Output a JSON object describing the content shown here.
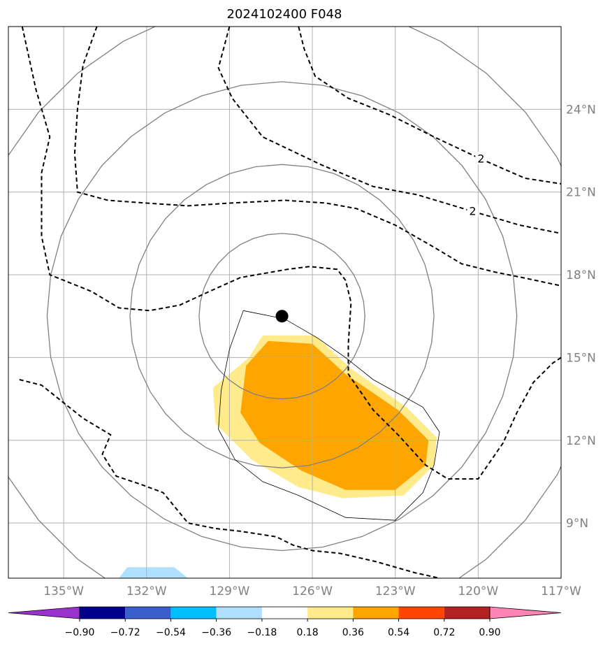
{
  "title": "2024102400 F048",
  "chart_data": {
    "type": "map-contour",
    "title": "2024102400 F048",
    "projection": "lat-lon",
    "lon_range": [
      -137,
      -117
    ],
    "lat_range": [
      7,
      27
    ],
    "lon_ticks": [
      {
        "value": -135,
        "label": "135°W"
      },
      {
        "value": -132,
        "label": "132°W"
      },
      {
        "value": -129,
        "label": "129°W"
      },
      {
        "value": -126,
        "label": "126°W"
      },
      {
        "value": -123,
        "label": "123°W"
      },
      {
        "value": -120,
        "label": "120°W"
      },
      {
        "value": -117,
        "label": "117°W"
      }
    ],
    "lat_ticks": [
      {
        "value": 9,
        "label": "9°N"
      },
      {
        "value": 12,
        "label": "12°N"
      },
      {
        "value": 15,
        "label": "15°N"
      },
      {
        "value": 18,
        "label": "18°N"
      },
      {
        "value": 21,
        "label": "21°N"
      },
      {
        "value": 24,
        "label": "24°N"
      }
    ],
    "grid": true,
    "center_marker": {
      "lon": -127.1,
      "lat": 16.5
    },
    "range_circles_deg": [
      3,
      5.5,
      8.5,
      11.5
    ],
    "colorbar": {
      "extend": "both",
      "levels": [
        -0.9,
        -0.72,
        -0.54,
        -0.36,
        -0.18,
        0.18,
        0.36,
        0.54,
        0.72,
        0.9
      ],
      "labels": [
        "−0.90",
        "−0.72",
        "−0.54",
        "−0.36",
        "−0.18",
        "0.18",
        "0.36",
        "0.54",
        "0.72",
        "0.90"
      ],
      "colors": [
        "#9932cc",
        "#00008b",
        "#3a5fcd",
        "#00bfff",
        "#b0e0ff",
        "#ffffff",
        "#ffeb8c",
        "#ffa500",
        "#ff4500",
        "#b22222",
        "#ff86b4"
      ]
    },
    "fill_regions": [
      {
        "level": "0.18–0.36",
        "color": "#ffeb8c",
        "points": [
          [
            -127.8,
            15.8
          ],
          [
            -125.9,
            15.8
          ],
          [
            -124.6,
            14.6
          ],
          [
            -122.6,
            13.2
          ],
          [
            -121.5,
            12.1
          ],
          [
            -121.6,
            11.1
          ],
          [
            -122.7,
            10.0
          ],
          [
            -124.9,
            9.9
          ],
          [
            -126.5,
            10.3
          ],
          [
            -128.2,
            11.3
          ],
          [
            -129.5,
            12.6
          ],
          [
            -129.6,
            13.9
          ],
          [
            -128.3,
            15.0
          ]
        ]
      },
      {
        "level": "0.36–0.54",
        "color": "#ffa500",
        "points": [
          [
            -127.6,
            15.6
          ],
          [
            -126.0,
            15.5
          ],
          [
            -124.8,
            14.4
          ],
          [
            -122.9,
            13.1
          ],
          [
            -121.8,
            12.0
          ],
          [
            -121.9,
            11.1
          ],
          [
            -123.0,
            10.2
          ],
          [
            -124.8,
            10.2
          ],
          [
            -126.4,
            10.9
          ],
          [
            -127.9,
            11.9
          ],
          [
            -128.6,
            13.0
          ],
          [
            -128.4,
            14.7
          ]
        ]
      },
      {
        "level": "-0.36–-0.18",
        "color": "#b0e0ff",
        "points": [
          [
            -133.0,
            7.0
          ],
          [
            -132.7,
            7.4
          ],
          [
            -131.0,
            7.4
          ],
          [
            -130.5,
            7.0
          ]
        ]
      }
    ],
    "dashed_contours": [
      {
        "label": "",
        "points": [
          [
            -136.6,
            14.2
          ],
          [
            -135.8,
            14.0
          ],
          [
            -134.3,
            12.8
          ],
          [
            -133.3,
            12.2
          ],
          [
            -133.6,
            11.5
          ],
          [
            -133.1,
            10.7
          ],
          [
            -132.2,
            10.4
          ],
          [
            -131.4,
            10.1
          ],
          [
            -130.5,
            9.0
          ],
          [
            -129.5,
            8.8
          ],
          [
            -128.6,
            8.7
          ],
          [
            -127.3,
            8.5
          ],
          [
            -126.7,
            8.2
          ],
          [
            -126.0,
            8.0
          ],
          [
            -125.0,
            7.9
          ],
          [
            -123.7,
            7.6
          ],
          [
            -122.3,
            7.2
          ],
          [
            -121.4,
            7.0
          ]
        ]
      },
      {
        "label": "",
        "points": [
          [
            -136.5,
            27.0
          ],
          [
            -136.0,
            24.7
          ],
          [
            -135.5,
            23.0
          ],
          [
            -135.8,
            21.7
          ],
          [
            -135.8,
            19.4
          ],
          [
            -135.5,
            18.0
          ],
          [
            -134.0,
            17.4
          ],
          [
            -133.0,
            16.8
          ],
          [
            -131.9,
            16.7
          ],
          [
            -130.8,
            16.9
          ],
          [
            -129.5,
            17.5
          ],
          [
            -128.6,
            17.9
          ],
          [
            -126.9,
            18.2
          ],
          [
            -126.1,
            18.3
          ],
          [
            -125.1,
            18.2
          ],
          [
            -124.8,
            17.8
          ],
          [
            -124.6,
            17.0
          ],
          [
            -124.7,
            15.5
          ],
          [
            -124.7,
            14.4
          ],
          [
            -123.8,
            13.1
          ],
          [
            -122.9,
            12.2
          ],
          [
            -121.9,
            11.1
          ],
          [
            -121.1,
            10.6
          ],
          [
            -120.0,
            10.6
          ],
          [
            -119.1,
            11.9
          ],
          [
            -118.6,
            13.0
          ],
          [
            -118.0,
            14.1
          ],
          [
            -117.3,
            14.8
          ],
          [
            -117.0,
            15.0
          ]
        ]
      },
      {
        "label": "",
        "points": [
          [
            -133.8,
            27.0
          ],
          [
            -134.3,
            25.6
          ],
          [
            -134.5,
            24.0
          ],
          [
            -134.6,
            22.4
          ],
          [
            -134.5,
            21.0
          ],
          [
            -133.4,
            20.7
          ],
          [
            -132.0,
            20.6
          ],
          [
            -130.5,
            20.5
          ],
          [
            -129.0,
            20.6
          ],
          [
            -127.0,
            20.7
          ],
          [
            -125.5,
            20.6
          ],
          [
            -124.4,
            20.4
          ],
          [
            -123.0,
            19.8
          ],
          [
            -121.6,
            19.0
          ],
          [
            -120.6,
            18.4
          ],
          [
            -119.4,
            18.1
          ],
          [
            -118.4,
            17.9
          ],
          [
            -117.0,
            17.6
          ]
        ]
      },
      {
        "label": "2",
        "points": [
          [
            -129.0,
            27.0
          ],
          [
            -129.4,
            25.5
          ],
          [
            -128.9,
            24.4
          ],
          [
            -127.8,
            23.0
          ],
          [
            -125.7,
            22.0
          ],
          [
            -123.8,
            21.2
          ],
          [
            -122.2,
            20.9
          ],
          [
            -120.2,
            20.3
          ],
          [
            -118.5,
            19.8
          ],
          [
            -117.0,
            19.5
          ]
        ]
      },
      {
        "label": "2",
        "points": [
          [
            -126.5,
            27.0
          ],
          [
            -126.3,
            26.2
          ],
          [
            -125.9,
            25.2
          ],
          [
            -124.7,
            24.4
          ],
          [
            -123.2,
            23.8
          ],
          [
            -121.6,
            23.0
          ],
          [
            -119.9,
            22.2
          ],
          [
            -118.3,
            21.5
          ],
          [
            -117.0,
            21.3
          ]
        ]
      }
    ],
    "solid_thin_contour": [
      [
        -128.5,
        16.7
      ],
      [
        -127.0,
        16.4
      ],
      [
        -125.8,
        15.7
      ],
      [
        -124.8,
        15.0
      ],
      [
        -123.8,
        14.2
      ],
      [
        -122.0,
        13.2
      ],
      [
        -121.4,
        12.3
      ],
      [
        -121.6,
        11.1
      ],
      [
        -122.0,
        10.1
      ],
      [
        -123.0,
        9.1
      ],
      [
        -124.8,
        9.2
      ],
      [
        -126.5,
        10.0
      ],
      [
        -127.8,
        10.5
      ],
      [
        -128.8,
        11.3
      ],
      [
        -129.4,
        12.4
      ],
      [
        -129.3,
        13.8
      ],
      [
        -129.0,
        15.3
      ]
    ]
  },
  "colorbar_labels": [
    "−0.90",
    "−0.72",
    "−0.54",
    "−0.36",
    "−0.18",
    "0.18",
    "0.36",
    "0.54",
    "0.72",
    "0.90"
  ]
}
